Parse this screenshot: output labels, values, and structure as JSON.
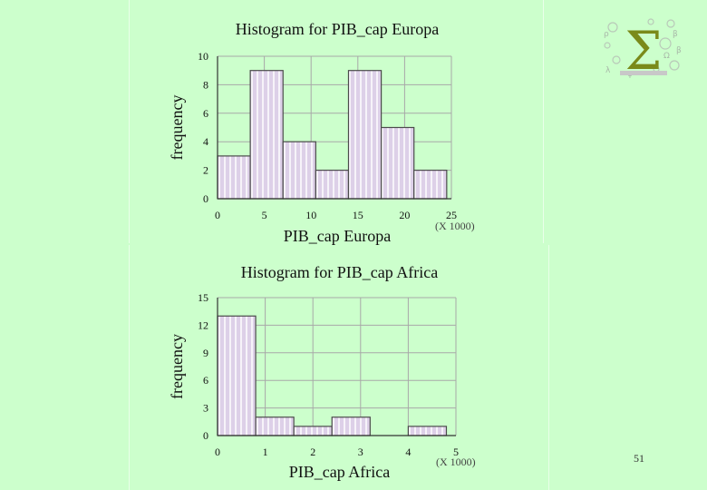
{
  "slide": {
    "page_number": "51"
  },
  "logo": {
    "icon": "sigma-logo-icon",
    "symbol": "Σ"
  },
  "colors": {
    "background": "#ccffcc",
    "bar_fill": "#ddd0e8",
    "bar_stripe": "#ffffff",
    "bar_edge": "#4b4b4b",
    "grid": "#a8a8a8",
    "axis": "#333333",
    "text": "#111111"
  },
  "chart_data": [
    {
      "type": "bar",
      "title": "Histogram for PIB_cap Europa",
      "xlabel": "PIB_cap Europa",
      "ylabel": "frequency",
      "x_scale_note": "(X 1000)",
      "bin_edges": [
        0,
        3.5,
        7,
        10.5,
        14,
        17.5,
        21,
        24.5
      ],
      "values": [
        3,
        9,
        4,
        2,
        9,
        5,
        2
      ],
      "xlim": [
        0,
        25
      ],
      "ylim": [
        0,
        10
      ],
      "xticks": [
        0,
        5,
        10,
        15,
        20,
        25
      ],
      "yticks": [
        0,
        2,
        4,
        6,
        8,
        10
      ],
      "grid": true
    },
    {
      "type": "bar",
      "title": "Histogram for PIB_cap Africa",
      "xlabel": "PIB_cap Africa",
      "ylabel": "frequency",
      "x_scale_note": "(X 1000)",
      "bin_edges": [
        0,
        0.8,
        1.6,
        2.4,
        3.2,
        4.0,
        4.8
      ],
      "values": [
        13,
        2,
        1,
        2,
        0,
        1
      ],
      "xlim": [
        0,
        5
      ],
      "ylim": [
        0,
        15
      ],
      "xticks": [
        0,
        1,
        2,
        3,
        4,
        5
      ],
      "yticks": [
        0,
        3,
        6,
        9,
        12,
        15
      ],
      "grid": true
    }
  ]
}
